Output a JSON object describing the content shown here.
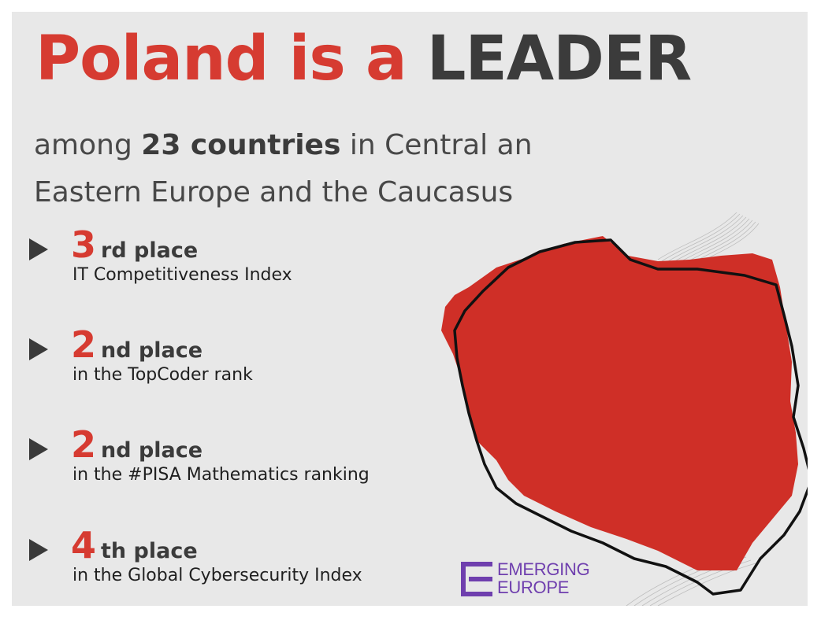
{
  "headline": {
    "part1": "Poland is a",
    "part2": "LEADER"
  },
  "subtitle": {
    "lead": "among",
    "bold": "23 countries",
    "rest": "in Central an",
    "line2": "Eastern Europe and the Caucasus"
  },
  "rankings": [
    {
      "number": "3",
      "suffix": "rd place",
      "description": "IT Competitiveness Index"
    },
    {
      "number": "2",
      "suffix": "nd place",
      "description": "in the TopCoder rank"
    },
    {
      "number": "2",
      "suffix": "nd place",
      "description": "in the #PISA Mathematics ranking"
    },
    {
      "number": "4",
      "suffix": "th place",
      "description": "in the Global Cybersecurity Index"
    }
  ],
  "logo": {
    "line1": "EMERGING",
    "line2": "EUROPE"
  },
  "colors": {
    "accent_red": "#d63b31",
    "dark_text": "#3b3b3b",
    "background": "#e8e8e8",
    "logo_purple": "#6f3fae"
  },
  "icons": {
    "bullet": "play-triangle-icon",
    "map": "poland-map-silhouette",
    "logo": "emerging-europe-logo-mark"
  }
}
